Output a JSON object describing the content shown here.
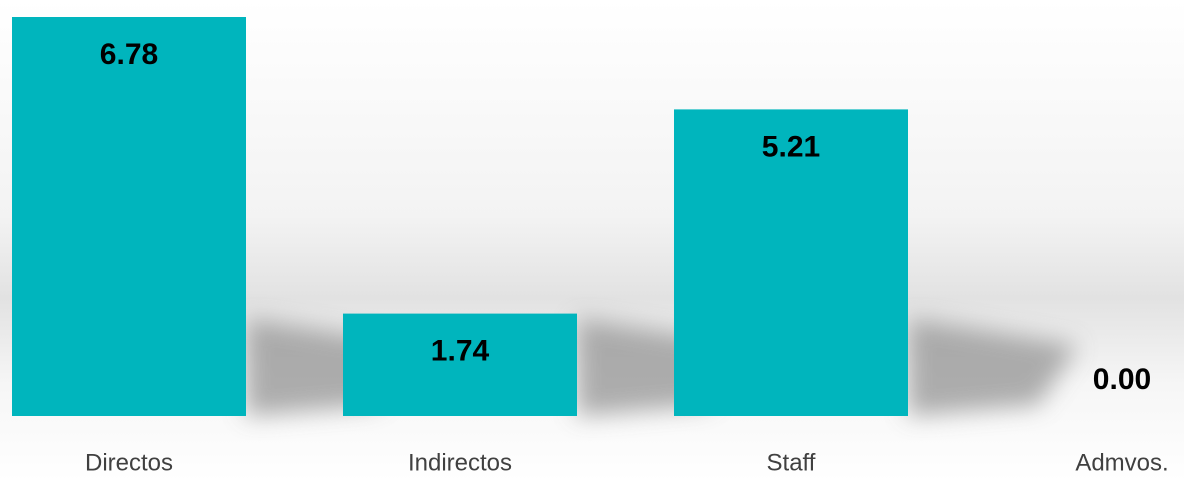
{
  "chart_data": {
    "type": "bar",
    "categories": [
      "Directos",
      "Indirectos",
      "Staff",
      "Admvos."
    ],
    "values": [
      6.78,
      1.74,
      5.21,
      0
    ],
    "value_labels": [
      "6.78",
      "1.74",
      "5.21",
      "0.00"
    ],
    "color": "#00b5bd"
  }
}
